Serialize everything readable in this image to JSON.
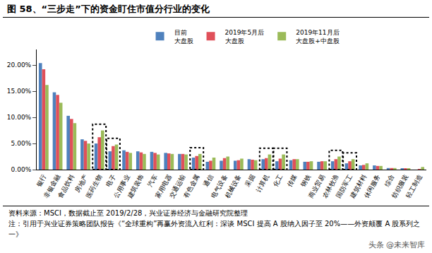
{
  "chart_data": {
    "type": "bar",
    "title": "图 58、“三步走”下的资金盯住市值分行业的变化",
    "categories": [
      "银行",
      "非银金融",
      "食品饮料",
      "房地产",
      "医药生物",
      "电子",
      "公用事业",
      "建筑装饰",
      "汽车",
      "家用电器",
      "交通运输",
      "有色金属",
      "通信",
      "电气设备",
      "机械设备",
      "采掘",
      "计算机",
      "化工",
      "传媒",
      "钢铁",
      "商业贸易",
      "农林牧渔",
      "国防军工",
      "建筑材料",
      "休闲服务",
      "综合",
      "纺织服装",
      "轻工制造"
    ],
    "series": [
      {
        "name": "目前",
        "label_below": "大盘股",
        "color": "#4f81bd",
        "values": [
          20.4,
          14.8,
          10.3,
          5.8,
          5.0,
          3.5,
          3.7,
          3.5,
          3.4,
          3.2,
          3.0,
          2.3,
          1.5,
          1.7,
          1.7,
          2.0,
          2.0,
          1.6,
          1.8,
          1.5,
          1.5,
          1.6,
          1.2,
          0.8,
          0.8,
          0.3,
          0.2,
          0.0
        ]
      },
      {
        "name": "2019年5月后",
        "label_below": "大盘股",
        "color": "#e0505a",
        "values": [
          19.2,
          14.3,
          9.7,
          5.5,
          6.2,
          4.5,
          3.4,
          3.3,
          3.2,
          3.1,
          3.0,
          2.6,
          1.7,
          2.2,
          1.8,
          1.9,
          2.2,
          2.1,
          2.0,
          1.5,
          1.6,
          2.0,
          1.6,
          0.9,
          0.7,
          0.3,
          0.2,
          0.1
        ]
      },
      {
        "name": "2019年11月后",
        "label_below": "大盘股+中盘股",
        "color": "#9bbb59",
        "values": [
          16.2,
          12.8,
          8.9,
          5.0,
          7.5,
          4.8,
          3.2,
          3.0,
          2.9,
          3.0,
          2.9,
          3.0,
          2.3,
          2.5,
          2.1,
          1.8,
          2.9,
          2.9,
          2.0,
          1.6,
          1.6,
          2.5,
          2.0,
          1.2,
          0.7,
          0.3,
          0.2,
          0.5
        ]
      }
    ],
    "highlight": [
      "医药生物",
      "电子",
      "有色金属",
      "计算机",
      "化工",
      "农林牧渔",
      "国防军工"
    ],
    "ylim": [
      0,
      23
    ],
    "yticks": [
      {
        "value": 0,
        "label": "0.00%"
      },
      {
        "value": 5,
        "label": "5.00%"
      },
      {
        "value": 10,
        "label": "10.00%"
      },
      {
        "value": 15,
        "label": "15.00%"
      },
      {
        "value": 20,
        "label": "20.00%"
      }
    ],
    "grid": false,
    "legend": "top",
    "notes": [
      "资料来源：MSCI，数据截止至 2019/2/28，兴业证券经济与金融研究院整理",
      "注：引用于兴业证券策略团队报告《“全球重构”再赢外资流入红利：深谈 MSCI 提高 A 股纳入因子至 20%——外资颠覆 A 股系列之一》"
    ],
    "watermark": "头条 @未来智库"
  }
}
